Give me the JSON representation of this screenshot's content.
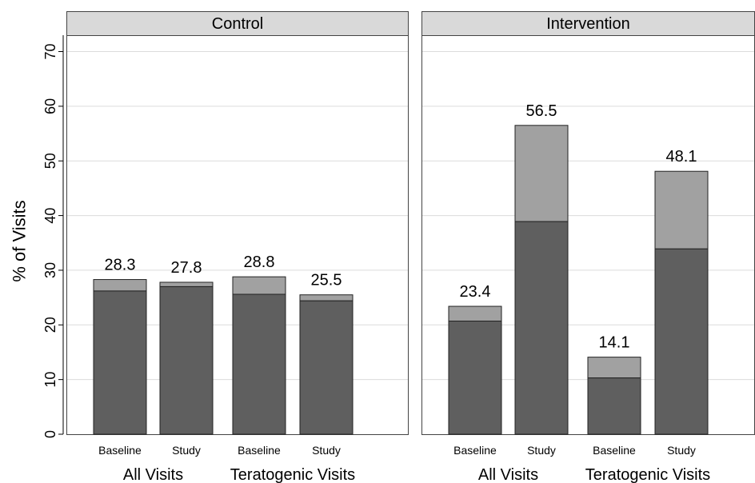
{
  "chart_data": {
    "type": "bar",
    "stacked": true,
    "ylabel": "% of Visits",
    "ylim": [
      0,
      73
    ],
    "yticks": [
      0,
      10,
      20,
      30,
      40,
      50,
      60,
      70
    ],
    "grid": true,
    "categories": [
      "Baseline",
      "Study"
    ],
    "groups": [
      "All Visits",
      "Teratogenic Visits"
    ],
    "panels": [
      {
        "title": "Control",
        "bars": [
          {
            "group": "All Visits",
            "category": "Baseline",
            "lower": 26.2,
            "total": 28.3,
            "label": "28.3"
          },
          {
            "group": "All Visits",
            "category": "Study",
            "lower": 27.0,
            "total": 27.8,
            "label": "27.8"
          },
          {
            "group": "Teratogenic Visits",
            "category": "Baseline",
            "lower": 25.6,
            "total": 28.8,
            "label": "28.8"
          },
          {
            "group": "Teratogenic Visits",
            "category": "Study",
            "lower": 24.4,
            "total": 25.5,
            "label": "25.5"
          }
        ]
      },
      {
        "title": "Intervention",
        "bars": [
          {
            "group": "All Visits",
            "category": "Baseline",
            "lower": 20.7,
            "total": 23.4,
            "label": "23.4"
          },
          {
            "group": "All Visits",
            "category": "Study",
            "lower": 38.9,
            "total": 56.5,
            "label": "56.5"
          },
          {
            "group": "Teratogenic Visits",
            "category": "Baseline",
            "lower": 10.3,
            "total": 14.1,
            "label": "14.1"
          },
          {
            "group": "Teratogenic Visits",
            "category": "Study",
            "lower": 33.9,
            "total": 48.1,
            "label": "48.1"
          }
        ]
      }
    ],
    "colors": {
      "lower": "#5f5f5f",
      "upper": "#a1a1a1",
      "strip": "#d9d9d9",
      "grid": "#dcdcdc",
      "border": "#444444"
    }
  }
}
